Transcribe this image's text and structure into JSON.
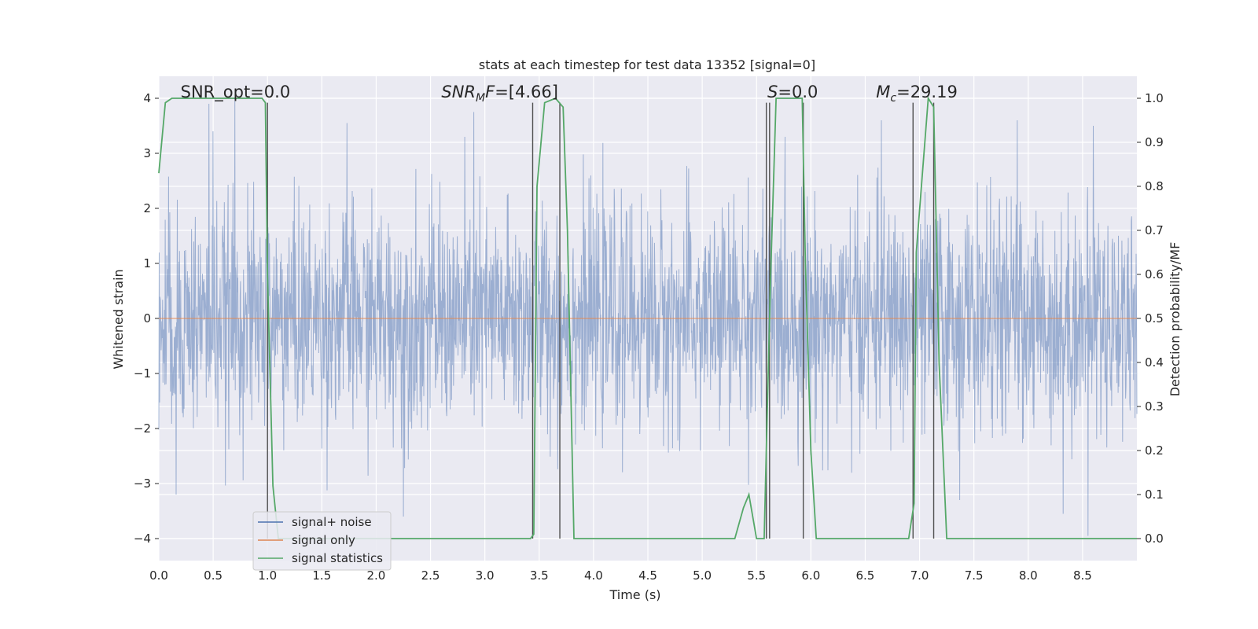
{
  "chart_data": {
    "type": "line",
    "title": "stats at each timestep for test data 13352 [signal=0]",
    "xlabel": "Time (s)",
    "ylabel_left": "Whitened strain",
    "ylabel_right": "Detection probability/MF",
    "xlim": [
      0.0,
      9.0
    ],
    "ylim_left": [
      -4.4,
      4.4
    ],
    "ylim_right": [
      -0.05,
      1.05
    ],
    "x_ticks": [
      0.0,
      0.5,
      1.0,
      1.5,
      2.0,
      2.5,
      3.0,
      3.5,
      4.0,
      4.5,
      5.0,
      5.5,
      6.0,
      6.5,
      7.0,
      7.5,
      8.0,
      8.5
    ],
    "x_tick_labels": [
      "0.0",
      "0.5",
      "1.0",
      "1.5",
      "2.0",
      "2.5",
      "3.0",
      "3.5",
      "4.0",
      "4.5",
      "5.0",
      "5.5",
      "6.0",
      "6.5",
      "7.0",
      "7.5",
      "8.0",
      "8.5"
    ],
    "y_left_ticks": [
      -4,
      -3,
      -2,
      -1,
      0,
      1,
      2,
      3,
      4
    ],
    "y_left_tick_labels": [
      "−4",
      "−3",
      "−2",
      "−1",
      "0",
      "1",
      "2",
      "3",
      "4"
    ],
    "y_right_ticks": [
      0.0,
      0.1,
      0.2,
      0.3,
      0.4,
      0.5,
      0.6,
      0.7,
      0.8,
      0.9,
      1.0
    ],
    "y_right_tick_labels": [
      "0.0",
      "0.1",
      "0.2",
      "0.3",
      "0.4",
      "0.5",
      "0.6",
      "0.7",
      "0.8",
      "0.9",
      "1.0"
    ],
    "grid": true,
    "legend_placement": "lower-left",
    "legend": [
      {
        "label": "signal+ noise",
        "color": "#4c72b0"
      },
      {
        "label": "signal only",
        "color": "#dd8452"
      },
      {
        "label": "signal statistics",
        "color": "#55a868"
      }
    ],
    "annotations": [
      {
        "kind": "plain",
        "text": "SNR_opt=0.0",
        "x": 0.2
      },
      {
        "kind": "math",
        "base": "SNR",
        "sub": "M",
        "tail": "F=[4.66]",
        "x": 2.6
      },
      {
        "kind": "math",
        "base": "S",
        "sub": "",
        "tail": "=0.0",
        "x": 5.6
      },
      {
        "kind": "math",
        "base": "M",
        "sub": "c",
        "tail": "=29.19",
        "x": 6.6
      }
    ],
    "series": [
      {
        "name": "signal+ noise",
        "axis": "left",
        "description": "whitened noisy strain, roughly unit variance, peaks up to about 4",
        "envelope_std": 1.0,
        "peaks": [
          {
            "x": 0.46,
            "y": 3.9
          },
          {
            "x": 0.7,
            "y": 3.95
          },
          {
            "x": 0.5,
            "y": 3.4
          },
          {
            "x": 2.9,
            "y": 3.75
          },
          {
            "x": 1.73,
            "y": 3.55
          },
          {
            "x": 7.9,
            "y": 3.6
          },
          {
            "x": 6.65,
            "y": 3.6
          },
          {
            "x": 8.6,
            "y": 3.5
          },
          {
            "x": 0.16,
            "y": -3.2
          },
          {
            "x": 2.25,
            "y": -3.6
          },
          {
            "x": 8.55,
            "y": -3.95
          },
          {
            "x": 8.32,
            "y": -3.55
          },
          {
            "x": 7.37,
            "y": -3.3
          }
        ]
      },
      {
        "name": "signal only",
        "axis": "left",
        "x": [
          0.0,
          9.0
        ],
        "y": [
          0.0,
          0.0
        ]
      },
      {
        "name": "signal statistics",
        "axis": "right",
        "x": [
          0.0,
          0.06,
          0.12,
          0.95,
          0.98,
          1.0,
          1.05,
          1.1,
          3.42,
          3.45,
          3.48,
          3.55,
          3.65,
          3.72,
          3.76,
          3.82,
          5.3,
          5.38,
          5.43,
          5.5,
          5.57,
          5.6,
          5.63,
          5.68,
          5.92,
          5.95,
          6.0,
          6.05,
          6.9,
          6.95,
          6.97,
          7.08,
          7.13,
          7.18,
          7.25,
          9.0
        ],
        "y": [
          0.83,
          0.99,
          1.0,
          1.0,
          0.99,
          0.6,
          0.12,
          0.0,
          0.0,
          0.01,
          0.8,
          0.99,
          1.0,
          0.98,
          0.7,
          0.0,
          0.0,
          0.07,
          0.1,
          0.0,
          0.0,
          0.3,
          0.6,
          1.0,
          1.0,
          0.62,
          0.2,
          0.0,
          0.0,
          0.08,
          0.65,
          1.0,
          0.98,
          0.4,
          0.0,
          0.0
        ]
      }
    ],
    "vertical_markers": [
      {
        "x": 1.0,
        "ymin": 0.0,
        "ymax": 0.99
      },
      {
        "x": 3.44,
        "ymin": 0.0,
        "ymax": 0.99
      },
      {
        "x": 3.69,
        "ymin": 0.0,
        "ymax": 0.99
      },
      {
        "x": 5.59,
        "ymin": 0.0,
        "ymax": 0.99
      },
      {
        "x": 5.62,
        "ymin": 0.0,
        "ymax": 0.99
      },
      {
        "x": 5.93,
        "ymin": 0.0,
        "ymax": 0.99
      },
      {
        "x": 6.94,
        "ymin": 0.0,
        "ymax": 0.99
      },
      {
        "x": 7.13,
        "ymin": 0.0,
        "ymax": 0.99
      }
    ],
    "colors": {
      "plot_bg": "#eaeaf2",
      "grid": "#ffffff",
      "noise": "#4c72b0",
      "signal": "#dd8452",
      "stats": "#55a868",
      "marker": "#505050"
    }
  }
}
